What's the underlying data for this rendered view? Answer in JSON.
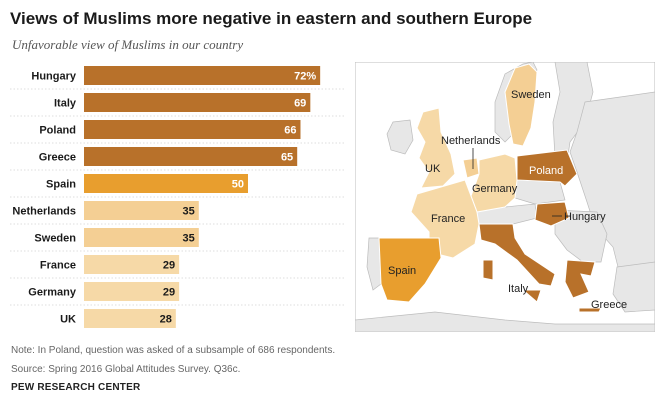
{
  "title": "Views of Muslims more negative in eastern and southern Europe",
  "subtitle": "Unfavorable view of Muslims in our country",
  "chart_data": {
    "type": "bar",
    "orientation": "horizontal",
    "categories": [
      "Hungary",
      "Italy",
      "Poland",
      "Greece",
      "Spain",
      "Netherlands",
      "Sweden",
      "France",
      "Germany",
      "UK"
    ],
    "values": [
      72,
      69,
      66,
      65,
      50,
      35,
      35,
      29,
      29,
      28
    ],
    "value_labels": [
      "72%",
      "69",
      "66",
      "65",
      "50",
      "35",
      "35",
      "29",
      "29",
      "28"
    ],
    "xlim": [
      0,
      100
    ],
    "bar_colors": [
      "#b8712a",
      "#b8712a",
      "#b8712a",
      "#b8712a",
      "#e89e2e",
      "#f4cf94",
      "#f4cf94",
      "#f6d9a7",
      "#f6d9a7",
      "#f6d9a7"
    ],
    "grid": false
  },
  "map": {
    "labels": {
      "sweden": "Sweden",
      "netherlands": "Netherlands",
      "uk": "UK",
      "poland": "Poland",
      "germany": "Germany",
      "france": "France",
      "hungary": "Hungary",
      "spain": "Spain",
      "italy": "Italy",
      "greece": "Greece"
    },
    "colors": {
      "dark": "#b8712a",
      "medium": "#e89e2e",
      "light": "#f4cf94",
      "lighter": "#f6d9a7",
      "other_land": "#e7e7e7",
      "water": "#ffffff",
      "border": "#bcbcbc"
    }
  },
  "footer": {
    "note": "Note: In Poland, question was asked of a subsample of 686 respondents.",
    "source": "Source: Spring 2016 Global Attitudes Survey. Q36c.",
    "org": "PEW RESEARCH CENTER"
  }
}
